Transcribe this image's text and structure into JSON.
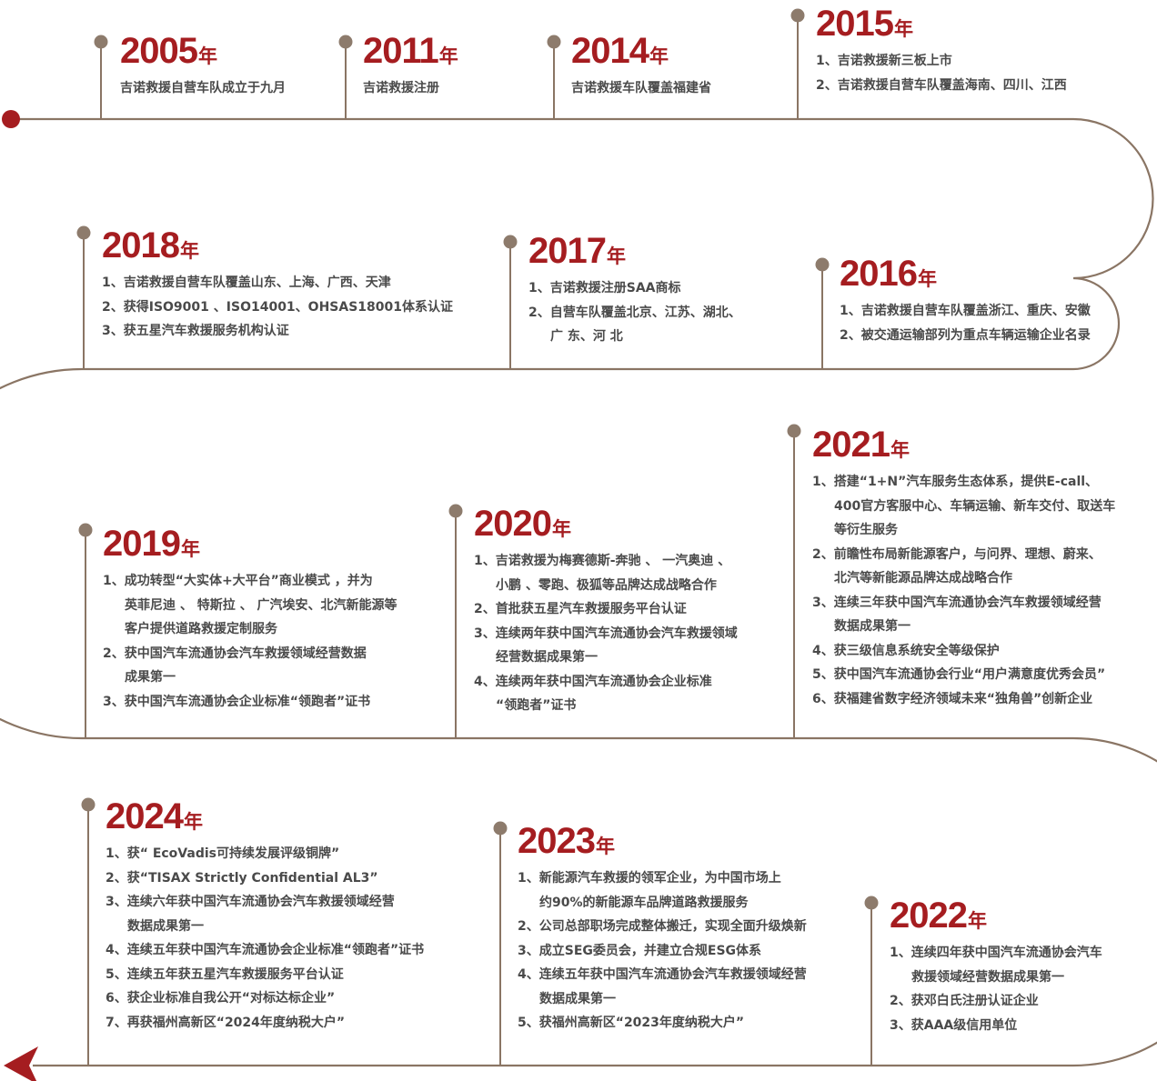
{
  "colors": {
    "path": "#8a7564",
    "dot": "#8d7b6c",
    "accent": "#a51d20",
    "text": "#4a4a4a"
  },
  "icons": {
    "start": "start-dot-icon",
    "end": "arrow-left-icon"
  },
  "year_suffix": "年",
  "milestones": [
    {
      "key": "m2005",
      "year": "2005",
      "items": [
        "吉诺救援自营车队成立于九月"
      ]
    },
    {
      "key": "m2011",
      "year": "2011",
      "items": [
        "吉诺救援注册"
      ]
    },
    {
      "key": "m2014",
      "year": "2014",
      "items": [
        "吉诺救援车队覆盖福建省"
      ]
    },
    {
      "key": "m2015",
      "year": "2015",
      "items": [
        "1、吉诺救援新三板上市",
        "2、吉诺救援自营车队覆盖海南、四川、江西"
      ]
    },
    {
      "key": "m2018",
      "year": "2018",
      "items": [
        "1、吉诺救援自营车队覆盖山东、上海、广西、天津",
        "2、获得ISO9001 、ISO14001、OHSAS18001体系认证",
        "3、获五星汽车救援服务机构认证"
      ]
    },
    {
      "key": "m2017",
      "year": "2017",
      "items": [
        "1、吉诺救援注册SAA商标",
        "2、自营车队覆盖北京、江苏、湖北、|广 东、河 北"
      ]
    },
    {
      "key": "m2016",
      "year": "2016",
      "items": [
        "1、吉诺救援自营车队覆盖浙江、重庆、安徽",
        "2、被交通运输部列为重点车辆运输企业名录"
      ]
    },
    {
      "key": "m2019",
      "year": "2019",
      "items": [
        "1、成功转型“大实体+大平台”商业模式 ，并为|英菲尼迪 、 特斯拉 、 广汽埃安、北汽新能源等|客户提供道路救援定制服务",
        "2、获中国汽车流通协会汽车救援领域经营数据|成果第一",
        "3、获中国汽车流通协会企业标准“领跑者”证书"
      ]
    },
    {
      "key": "m2020",
      "year": "2020",
      "items": [
        "1、吉诺救援为梅赛德斯-奔驰 、 一汽奥迪 、|小鹏 、零跑、极狐等品牌达成战略合作",
        "2、首批获五星汽车救援服务平台认证",
        "3、连续两年获中国汽车流通协会汽车救援领域|经营数据成果第一",
        "4、连续两年获中国汽车流通协会企业标准|“领跑者”证书"
      ]
    },
    {
      "key": "m2021",
      "year": "2021",
      "items": [
        "1、搭建“1+N”汽车服务生态体系，提供E-call、|400官方客服中心、车辆运输、新车交付、取送车|等衍生服务",
        "2、前瞻性布局新能源客户，与问界、理想、蔚来、|北汽等新能源品牌达成战略合作",
        "3、连续三年获中国汽车流通协会汽车救援领域经营|数据成果第一",
        "4、获三级信息系统安全等级保护",
        "5、获中国汽车流通协会行业“用户满意度优秀会员”",
        "6、获福建省数字经济领域未来“独角兽”创新企业"
      ]
    },
    {
      "key": "m2024",
      "year": "2024",
      "items": [
        "1、获“ EcoVadis可持续发展评级铜牌”",
        "2、获“TISAX Strictly Confidential AL3”",
        "3、连续六年获中国汽车流通协会汽车救援领域经营|数据成果第一",
        "4、连续五年获中国汽车流通协会企业标准“领跑者”证书",
        "5、连续五年获五星汽车救援服务平台认证",
        "6、获企业标准自我公开“对标达标企业”",
        "7、再获福州高新区“2024年度纳税大户”"
      ]
    },
    {
      "key": "m2023",
      "year": "2023",
      "items": [
        "1、新能源汽车救援的领军企业，为中国市场上|约90%的新能源车品牌道路救援服务",
        "2、公司总部职场完成整体搬迁，实现全面升级焕新",
        "3、成立SEG委员会，并建立合规ESG体系",
        "4、连续五年获中国汽车流通协会汽车救援领域经营|数据成果第一",
        "5、获福州高新区“2023年度纳税大户”"
      ]
    },
    {
      "key": "m2022",
      "year": "2022",
      "items": [
        "1、连续四年获中国汽车流通协会汽车|救援领域经营数据成果第一",
        "2、获邓白氏注册认证企业",
        "3、获AAA级信用单位"
      ]
    }
  ]
}
